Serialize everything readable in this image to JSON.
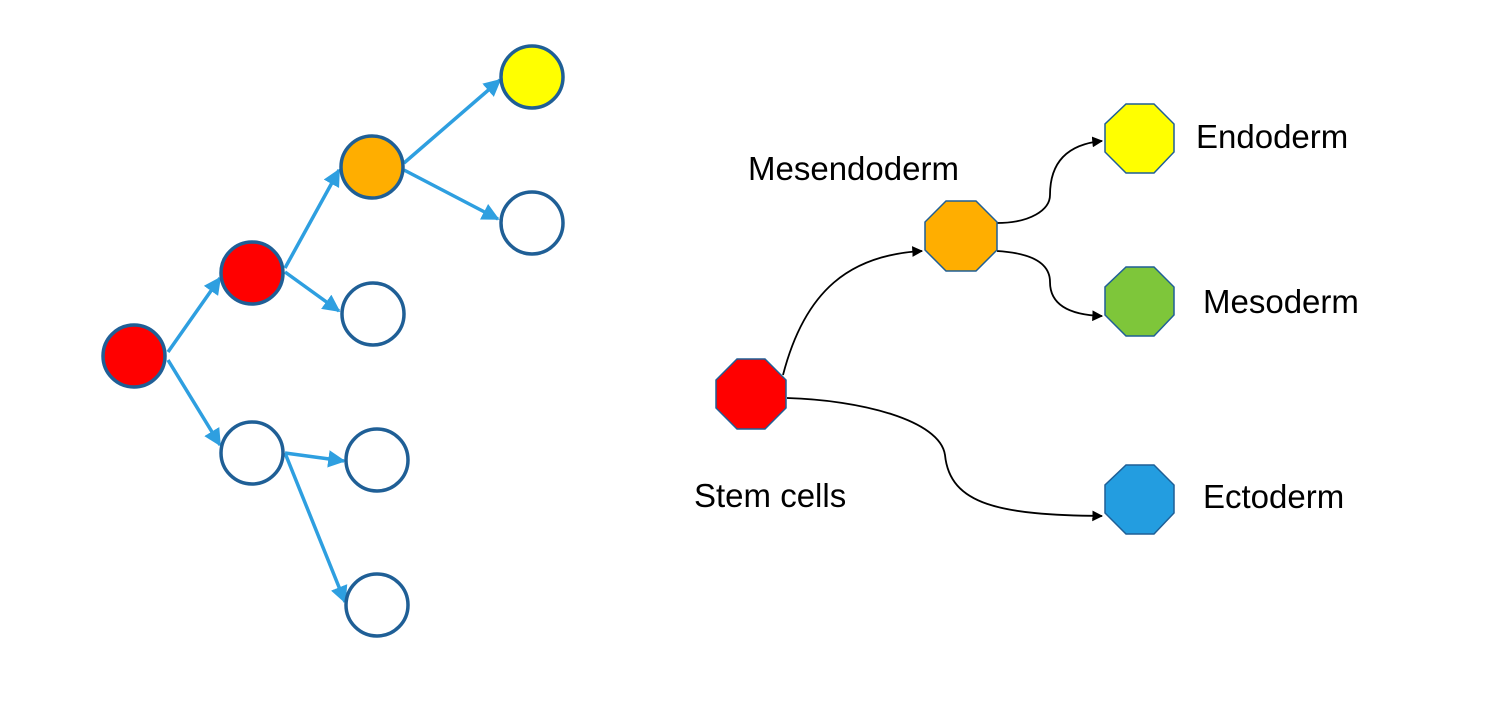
{
  "colors": {
    "tree_edge": "#2e9fe0",
    "tree_node_stroke": "#1f5f96",
    "flow_edge": "#000000",
    "stem": "#ff0000",
    "mesendoderm": "#ffae00",
    "endoderm": "#ffff00",
    "mesoderm": "#7ec63a",
    "ectoderm": "#239de0",
    "empty": "#ffffff"
  },
  "lineage_tree": {
    "nodes": [
      {
        "id": "root",
        "fill": "red"
      },
      {
        "id": "a",
        "fill": "red"
      },
      {
        "id": "b",
        "fill": "empty"
      },
      {
        "id": "a1",
        "fill": "orange"
      },
      {
        "id": "a2",
        "fill": "empty"
      },
      {
        "id": "a1a",
        "fill": "yellow"
      },
      {
        "id": "a1b",
        "fill": "empty"
      },
      {
        "id": "b1",
        "fill": "empty"
      },
      {
        "id": "b2",
        "fill": "empty"
      }
    ],
    "edges": [
      [
        "root",
        "a"
      ],
      [
        "root",
        "b"
      ],
      [
        "a",
        "a1"
      ],
      [
        "a",
        "a2"
      ],
      [
        "a1",
        "a1a"
      ],
      [
        "a1",
        "a1b"
      ],
      [
        "b",
        "b1"
      ],
      [
        "b",
        "b2"
      ]
    ]
  },
  "differentiation": {
    "nodes": [
      {
        "id": "stem",
        "label": "Stem cells",
        "color": "stem"
      },
      {
        "id": "mesendoderm",
        "label": "Mesendoderm",
        "color": "mesendoderm"
      },
      {
        "id": "endoderm",
        "label": "Endoderm",
        "color": "endoderm"
      },
      {
        "id": "mesoderm",
        "label": "Mesoderm",
        "color": "mesoderm"
      },
      {
        "id": "ectoderm",
        "label": "Ectoderm",
        "color": "ectoderm"
      }
    ],
    "edges": [
      [
        "stem",
        "mesendoderm"
      ],
      [
        "stem",
        "ectoderm"
      ],
      [
        "mesendoderm",
        "endoderm"
      ],
      [
        "mesendoderm",
        "mesoderm"
      ]
    ]
  }
}
